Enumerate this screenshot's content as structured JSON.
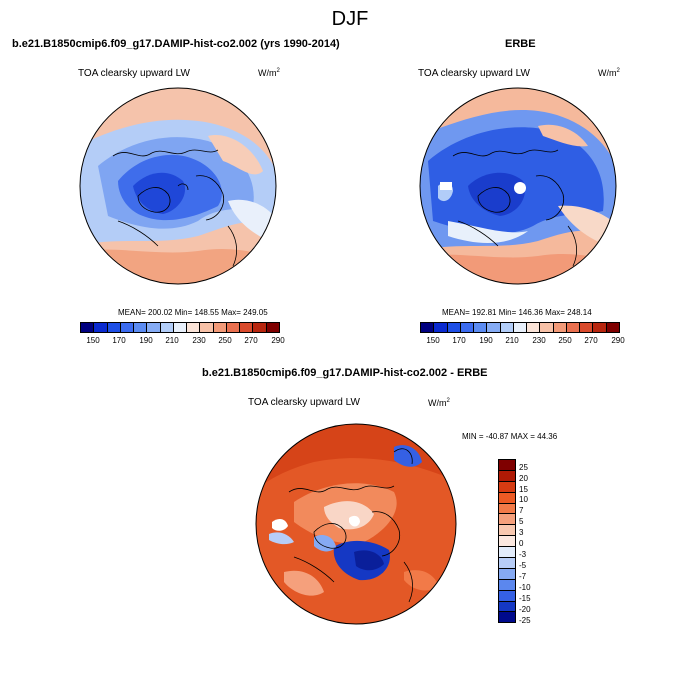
{
  "season": "DJF",
  "panels": {
    "model": {
      "header": "b.e21.B1850cmip6.f09_g17.DAMIP-hist-co2.002 (yrs 1990-2014)",
      "variable": "TOA clearsky upward LW",
      "units_base": "W/m",
      "units_exp": "2",
      "stats": "MEAN= 200.02  Min= 148.55  Max= 249.05",
      "colorbar_ticks": [
        "150",
        "170",
        "190",
        "210",
        "230",
        "250",
        "270",
        "290"
      ]
    },
    "obs": {
      "header": "ERBE",
      "variable": "TOA clearsky upward LW",
      "units_base": "W/m",
      "units_exp": "2",
      "stats": "MEAN= 192.81  Min= 146.36  Max= 248.14",
      "colorbar_ticks": [
        "150",
        "170",
        "190",
        "210",
        "230",
        "250",
        "270",
        "290"
      ]
    },
    "diff": {
      "header": "b.e21.B1850cmip6.f09_g17.DAMIP-hist-co2.002 - ERBE",
      "variable": "TOA clearsky upward LW",
      "units_base": "W/m",
      "units_exp": "2",
      "stats": "MIN = -40.87 MAX =  44.36",
      "colorbar_ticks": [
        "25",
        "20",
        "15",
        "10",
        "7",
        "5",
        "3",
        "0",
        "-3",
        "-5",
        "-7",
        "-10",
        "-15",
        "-20",
        "-25"
      ]
    }
  },
  "colors": {
    "abs_scale": [
      "#00007f",
      "#0a2ad0",
      "#1e4fe6",
      "#3c6cf0",
      "#5c8cf2",
      "#86acf5",
      "#b2cdf8",
      "#e8f0fb",
      "#fbe4d8",
      "#f7c1a7",
      "#f29a78",
      "#e9704f",
      "#d94a2c",
      "#b8260f",
      "#7f0000"
    ],
    "diff_scale": [
      "#7f0000",
      "#b01a05",
      "#d63b12",
      "#ec5a24",
      "#f27a48",
      "#f5a07c",
      "#f8c8b0",
      "#fbe8e0",
      "#e2ecfb",
      "#b7cdf7",
      "#86aaf3",
      "#5b87ee",
      "#3560e4",
      "#1538c4",
      "#000a8c"
    ]
  }
}
